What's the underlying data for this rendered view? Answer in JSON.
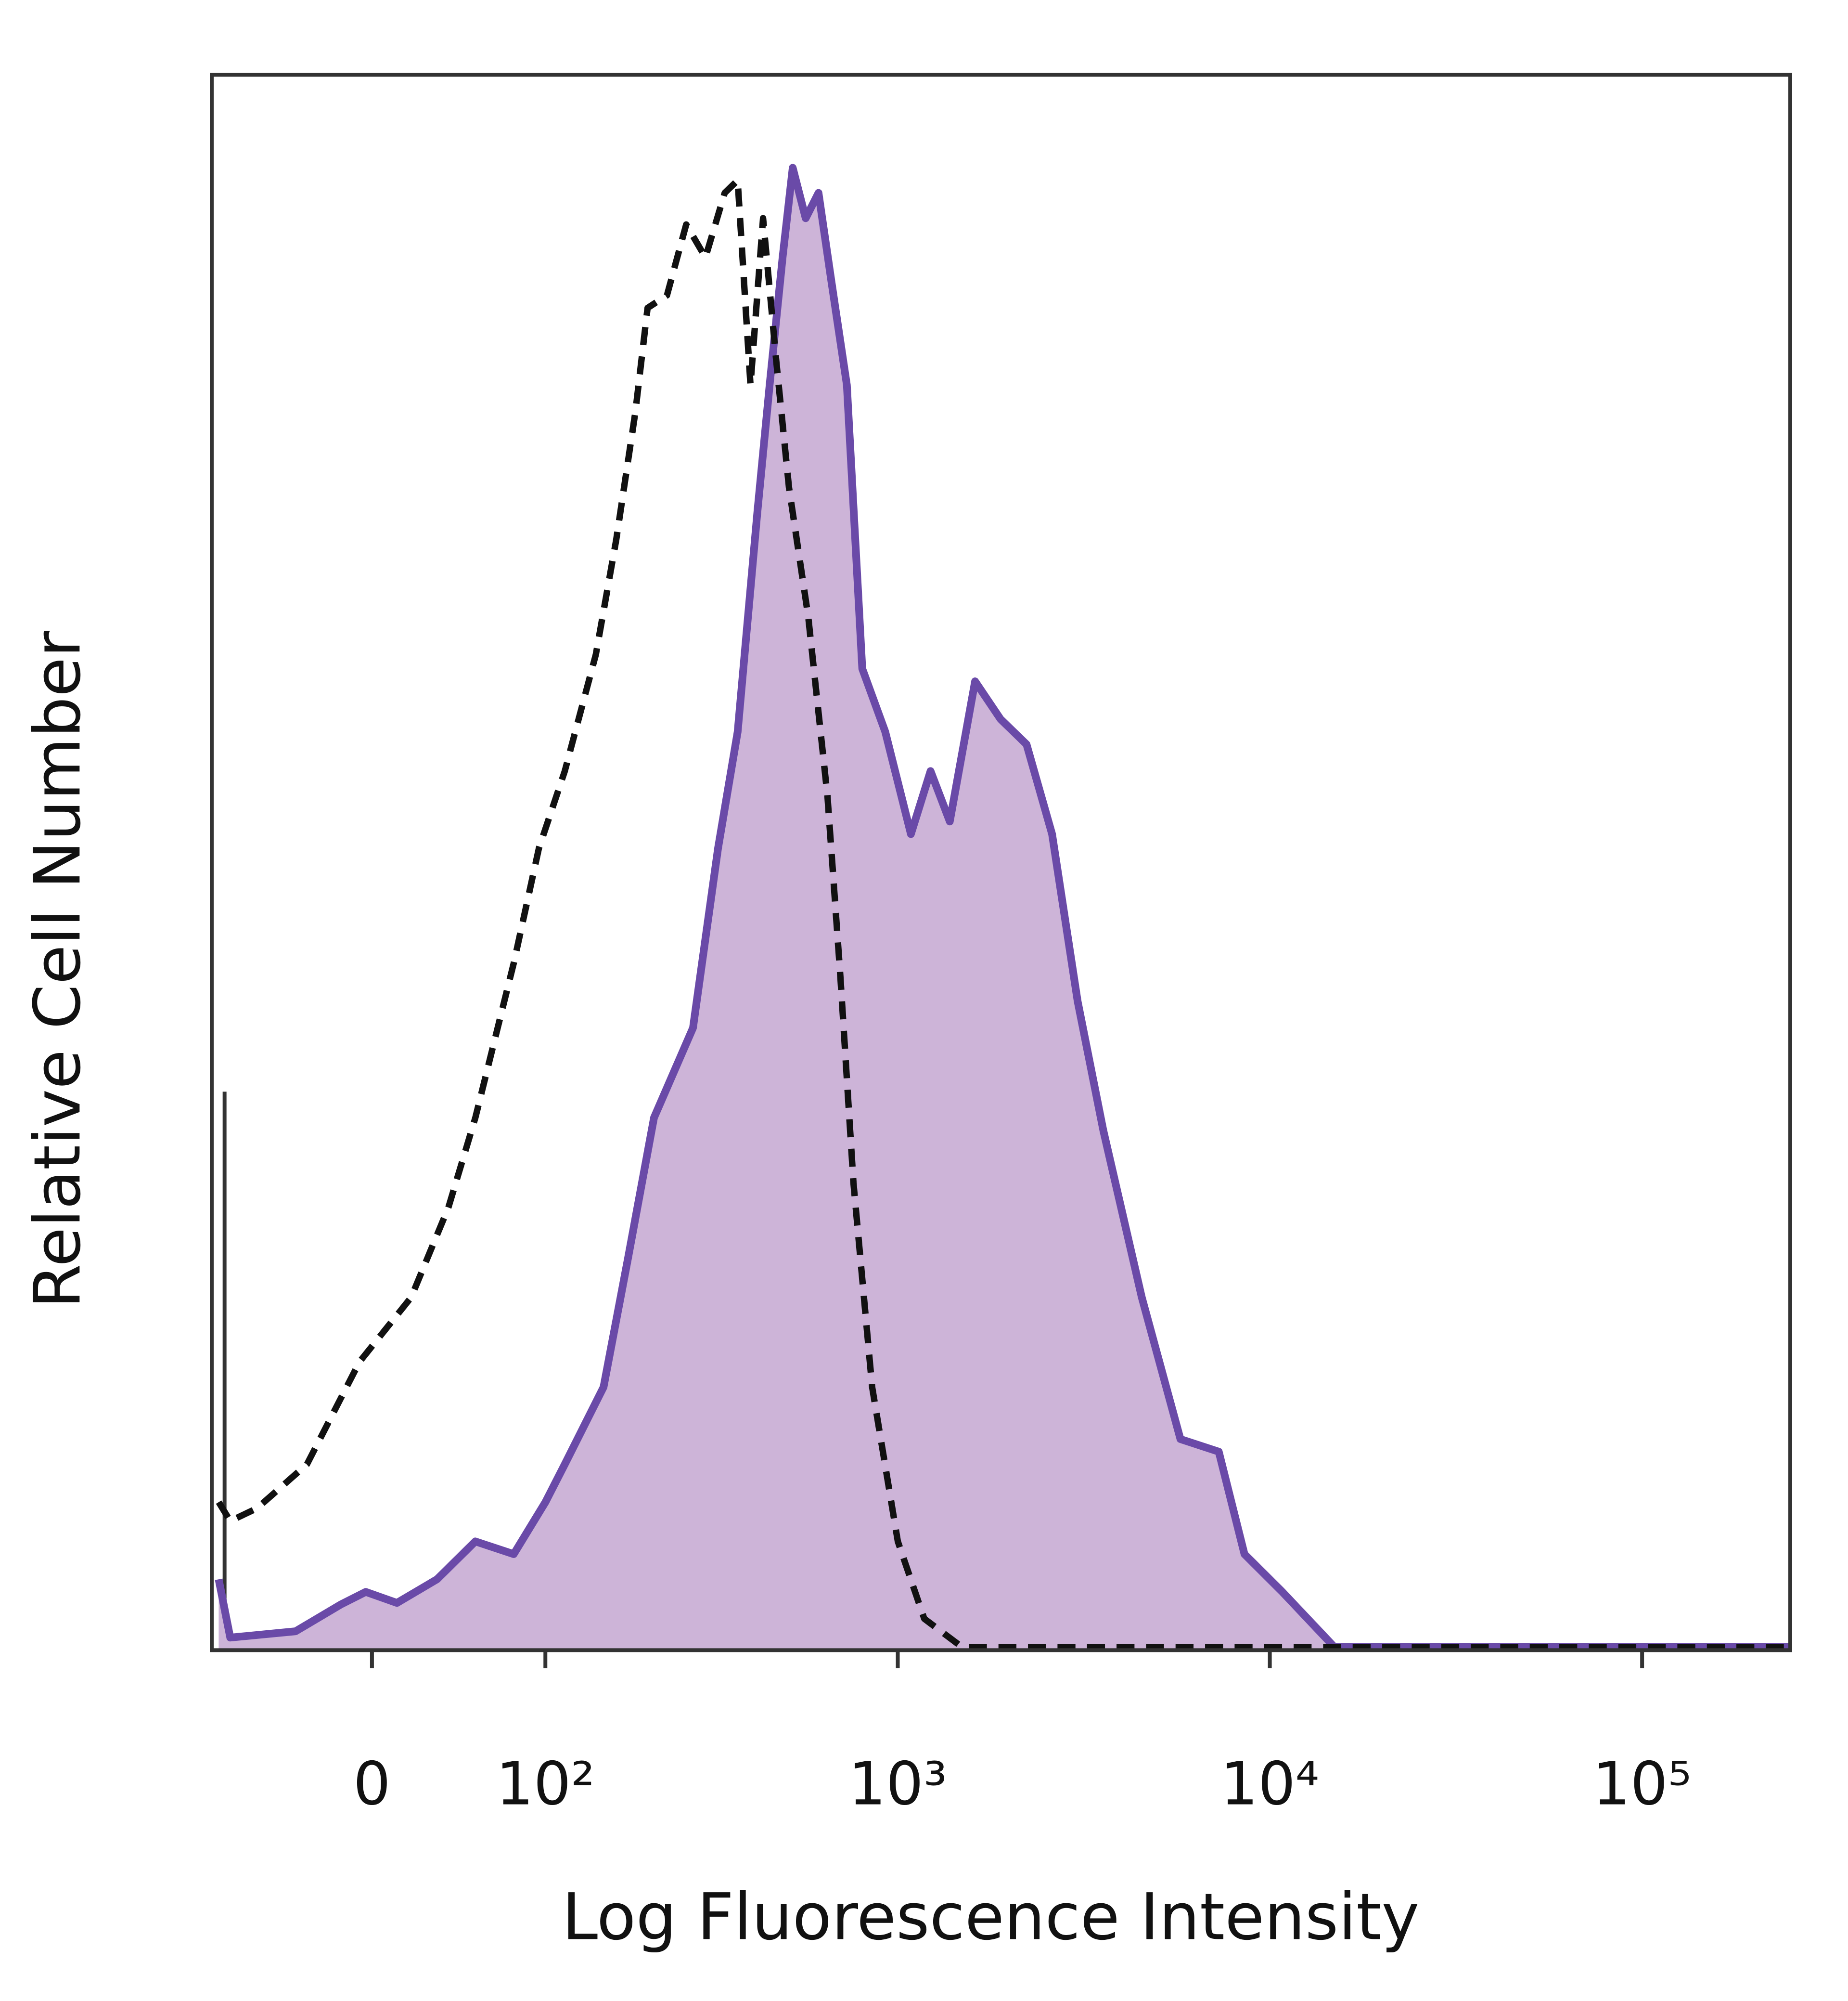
{
  "chart_data": {
    "type": "histogram-overlay",
    "xlabel": "Log Fluorescence Intensity",
    "ylabel": "Relative Cell Number",
    "xscale": "biexponential",
    "xlim": [
      -90,
      250000
    ],
    "ylim": [
      0,
      100
    ],
    "xticks": [
      0,
      {
        "value": 100,
        "label": "10²"
      },
      {
        "value": 1000,
        "label": "10³"
      },
      {
        "value": 10000,
        "label": "10⁴"
      },
      {
        "value": 100000,
        "label": "10⁵"
      }
    ],
    "series": [
      {
        "color": "#6a4aa8",
        "fill": "#cdb4d8",
        "dash": false,
        "x": [
          -85,
          -77,
          -38,
          -15,
          -3,
          12,
          32,
          53,
          77,
          100,
          116,
          153,
          181,
          215,
          277,
          325,
          368,
          416,
          450,
          488,
          520,
          564,
          611,
          663,
          729,
          802,
          925,
          1085,
          1225,
          1380,
          1615,
          1890,
          2220,
          2600,
          3045,
          3570,
          4530,
          5750,
          7290,
          8550,
          10800,
          14900,
          250000
        ],
        "values": [
          4.5,
          0.8,
          1.2,
          2.9,
          3.7,
          3.0,
          4.5,
          6.9,
          6.1,
          9.4,
          11.8,
          16.7,
          24.9,
          33.8,
          39.5,
          50.9,
          58.3,
          72.1,
          80.3,
          88.4,
          94.1,
          90.9,
          92.5,
          86.8,
          80.3,
          62.3,
          58.3,
          51.8,
          55.8,
          52.6,
          61.5,
          59.1,
          57.5,
          51.8,
          41.2,
          33.0,
          22.4,
          13.4,
          12.6,
          6.1,
          3.7,
          0.2,
          0.2
        ]
      },
      {
        "color": "#111111",
        "dash": true,
        "x": [
          -85,
          -77,
          -60,
          -32,
          -6,
          19,
          38,
          53,
          77,
          95,
          116,
          145,
          167,
          190,
          206,
          234,
          265,
          300,
          339,
          368,
          399,
          432,
          469,
          508,
          573,
          646,
          700,
          759,
          853,
          1000,
          1178,
          1488,
          250000
        ],
        "values": [
          9.4,
          8.2,
          9.0,
          11.8,
          18.3,
          22.4,
          28.1,
          33.8,
          43.6,
          50.9,
          55.8,
          63.2,
          70.5,
          78.6,
          85.2,
          86.0,
          90.5,
          88.4,
          92.5,
          93.3,
          80.3,
          90.9,
          81.9,
          73.8,
          65.6,
          54.2,
          42.8,
          29.7,
          16.7,
          6.9,
          2.0,
          0.2,
          0.2
        ]
      }
    ]
  }
}
